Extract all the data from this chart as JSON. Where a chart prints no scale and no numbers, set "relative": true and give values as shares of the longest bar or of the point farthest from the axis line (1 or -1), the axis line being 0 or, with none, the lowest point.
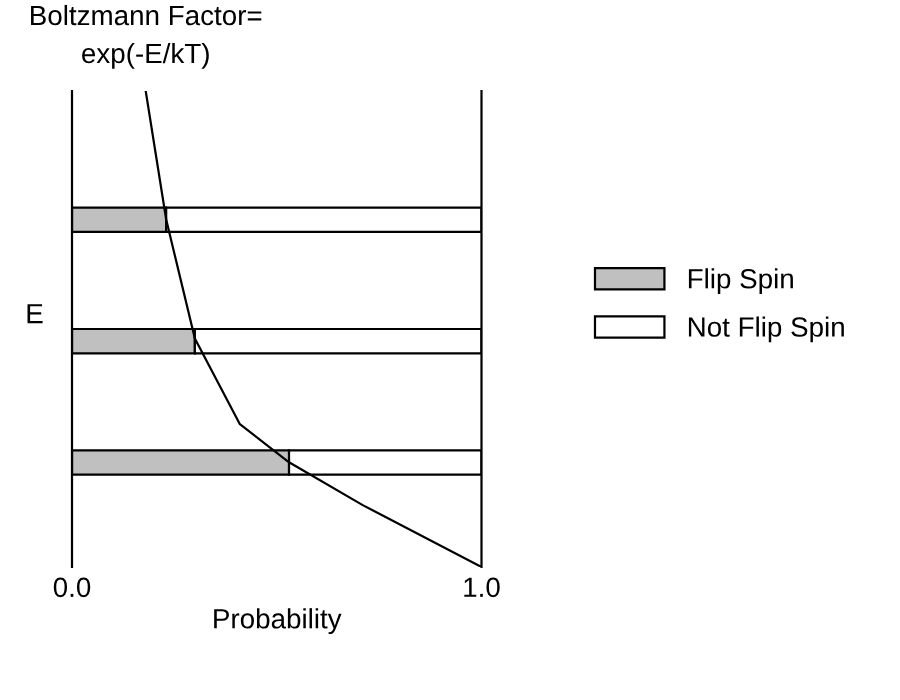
{
  "chart_data": [
    {
      "type": "bar",
      "orientation": "horizontal",
      "stacked": true,
      "categories": [
        null,
        null,
        null
      ],
      "series": [
        {
          "name": "Flip Spin",
          "color": "#c0c0c0",
          "values": [
            0.23,
            0.3,
            0.53
          ]
        },
        {
          "name": "Not Flip Spin",
          "color": "#ffffff",
          "values": [
            0.77,
            0.7,
            0.47
          ]
        }
      ],
      "xlim": [
        0,
        1
      ],
      "xticks": [
        {
          "value": 0,
          "label": "0.0"
        },
        {
          "value": 1,
          "label": "1.0"
        }
      ],
      "xlabel": "Probability",
      "ylabel": "E",
      "legend": "right"
    },
    {
      "type": "line",
      "relative": true,
      "tick_labels": false,
      "series": [
        {
          "name": "Boltzmann Factor=\nexp(-E/kT)",
          "color": "#000000",
          "x": [
            0.18,
            0.23,
            0.3,
            0.41,
            0.53,
            0.71,
            1.0
          ],
          "values": [
            1.0,
            0.73,
            0.48,
            0.3,
            0.22,
            0.13,
            0.0
          ]
        }
      ],
      "xlim": [
        0,
        1
      ]
    }
  ]
}
